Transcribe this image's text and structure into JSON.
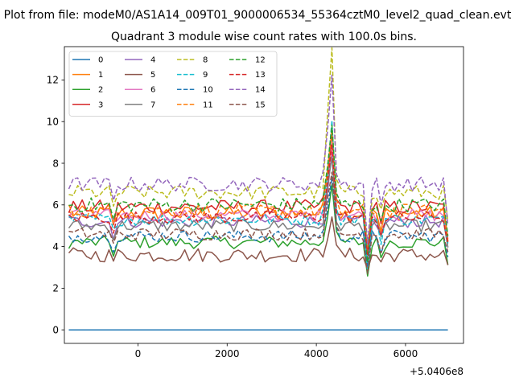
{
  "chart_data": {
    "type": "line",
    "suptitle": "Plot from file: modeM0/AS1A14_009T01_9000006534_55364cztM0_level2_quad_clean.evt",
    "title": "Quadrant 3 module wise count rates with 100.0s bins.",
    "xlabel": "",
    "ylabel": "",
    "x_offset_label": "+5.0406e8",
    "xlim": [
      -1650,
      7300
    ],
    "ylim": [
      -0.65,
      13.6
    ],
    "xticks": [
      0,
      2000,
      4000,
      6000
    ],
    "yticks": [
      0,
      2,
      4,
      6,
      8,
      10,
      12
    ],
    "legend": {
      "loc": "upper left",
      "ncol": 4
    },
    "x": {
      "start": -1550,
      "step": 100,
      "count": 86
    },
    "colors": [
      "#1f77b4",
      "#ff7f0e",
      "#2ca02c",
      "#d62728",
      "#9467bd",
      "#8c564b",
      "#e377c2",
      "#7f7f7f",
      "#bcbd22",
      "#17becf",
      "#1f77b4",
      "#ff7f0e",
      "#2ca02c",
      "#d62728",
      "#9467bd",
      "#8c564b"
    ],
    "series": [
      {
        "name": "0",
        "style": "solid",
        "base": 0.0,
        "amp": 0.0,
        "peak": 0.0,
        "dip": 0.0
      },
      {
        "name": "1",
        "style": "solid",
        "base": 5.6,
        "amp": 0.35,
        "peak": 3.4,
        "dip": 2.2
      },
      {
        "name": "2",
        "style": "solid",
        "base": 4.2,
        "amp": 0.3,
        "peak": 2.6,
        "dip": 1.6
      },
      {
        "name": "3",
        "style": "solid",
        "base": 5.9,
        "amp": 0.35,
        "peak": 3.2,
        "dip": 2.4
      },
      {
        "name": "4",
        "style": "solid",
        "base": 5.2,
        "amp": 0.3,
        "peak": 3.0,
        "dip": 2.0
      },
      {
        "name": "5",
        "style": "solid",
        "base": 3.6,
        "amp": 0.35,
        "peak": 1.9,
        "dip": 0.8
      },
      {
        "name": "6",
        "style": "solid",
        "base": 5.5,
        "amp": 0.3,
        "peak": 3.1,
        "dip": 2.1
      },
      {
        "name": "7",
        "style": "solid",
        "base": 5.0,
        "amp": 0.3,
        "peak": 3.0,
        "dip": 1.9
      },
      {
        "name": "8",
        "style": "dashed",
        "base": 6.6,
        "amp": 0.35,
        "peak": 6.4,
        "dip": 2.5
      },
      {
        "name": "9",
        "style": "dashed",
        "base": 5.3,
        "amp": 0.3,
        "peak": 4.6,
        "dip": 2.3
      },
      {
        "name": "10",
        "style": "dashed",
        "base": 4.5,
        "amp": 0.3,
        "peak": 2.6,
        "dip": 1.6
      },
      {
        "name": "11",
        "style": "dashed",
        "base": 5.7,
        "amp": 0.35,
        "peak": 3.4,
        "dip": 2.3
      },
      {
        "name": "12",
        "style": "dashed",
        "base": 6.0,
        "amp": 0.35,
        "peak": 3.6,
        "dip": 2.6
      },
      {
        "name": "13",
        "style": "dashed",
        "base": 5.4,
        "amp": 0.3,
        "peak": 3.2,
        "dip": 2.0
      },
      {
        "name": "14",
        "style": "dashed",
        "base": 7.0,
        "amp": 0.35,
        "peak": 5.1,
        "dip": 3.0
      },
      {
        "name": "15",
        "style": "dashed",
        "base": 4.6,
        "amp": 0.3,
        "peak": 2.6,
        "dip": 1.7
      }
    ]
  }
}
